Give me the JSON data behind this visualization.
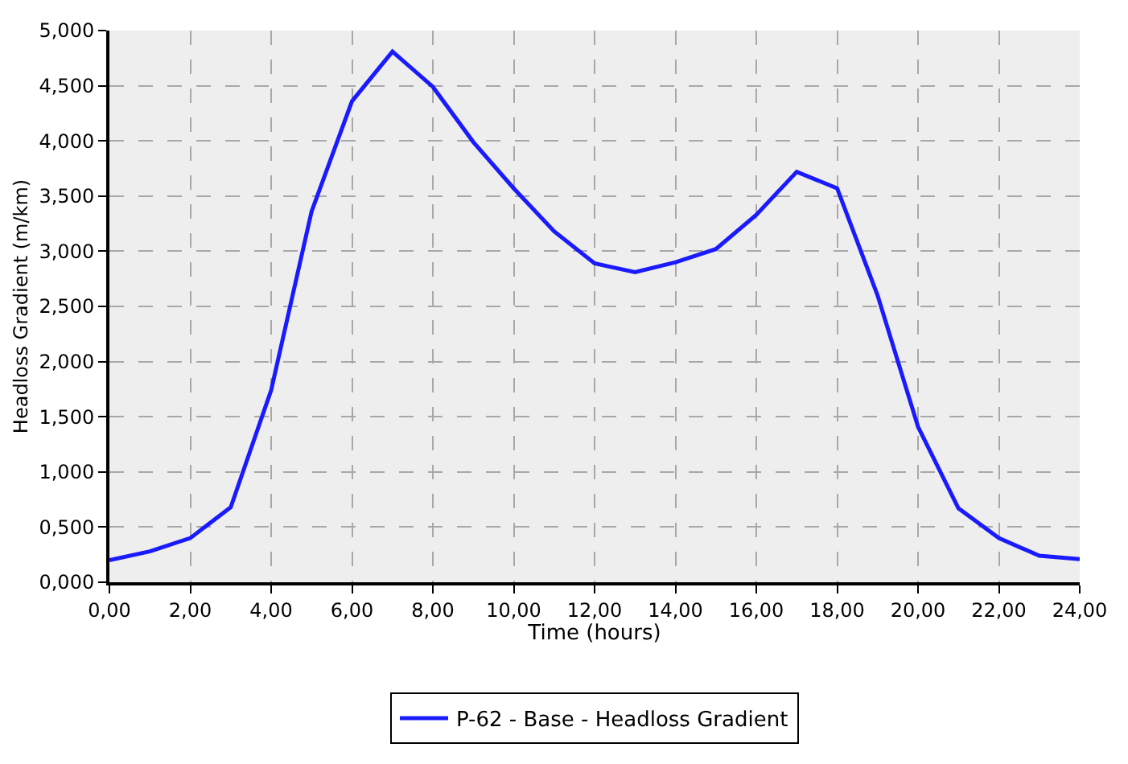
{
  "chart_data": {
    "type": "line",
    "xlabel": "Time (hours)",
    "ylabel": "Headloss Gradient (m/km)",
    "x": [
      0,
      1,
      2,
      3,
      4,
      5,
      6,
      7,
      8,
      9,
      10,
      11,
      12,
      13,
      14,
      15,
      16,
      17,
      18,
      19,
      20,
      21,
      22,
      23,
      24
    ],
    "series": [
      {
        "name": "P-62 - Base - Headloss Gradient",
        "color": "#1a1aff",
        "values": [
          0.2,
          0.28,
          0.4,
          0.68,
          1.74,
          3.36,
          4.36,
          4.81,
          4.49,
          3.99,
          3.57,
          3.18,
          2.89,
          2.81,
          2.9,
          3.02,
          3.33,
          3.72,
          3.57,
          2.6,
          1.41,
          0.67,
          0.4,
          0.24,
          0.21
        ]
      }
    ],
    "xlim": [
      0,
      24
    ],
    "xticks": [
      {
        "value": 0,
        "label": "0,00"
      },
      {
        "value": 2,
        "label": "2,00"
      },
      {
        "value": 4,
        "label": "4,00"
      },
      {
        "value": 6,
        "label": "6,00"
      },
      {
        "value": 8,
        "label": "8,00"
      },
      {
        "value": 10,
        "label": "10,00"
      },
      {
        "value": 12,
        "label": "12,00"
      },
      {
        "value": 14,
        "label": "14,00"
      },
      {
        "value": 16,
        "label": "16,00"
      },
      {
        "value": 18,
        "label": "18,00"
      },
      {
        "value": 20,
        "label": "20,00"
      },
      {
        "value": 22,
        "label": "22,00"
      },
      {
        "value": 24,
        "label": "24,00"
      }
    ],
    "ylim": [
      0,
      5
    ],
    "yticks": [
      {
        "value": 0,
        "label": "0,000"
      },
      {
        "value": 0.5,
        "label": "0,500"
      },
      {
        "value": 1,
        "label": "1,000"
      },
      {
        "value": 1.5,
        "label": "1,500"
      },
      {
        "value": 2,
        "label": "2,000"
      },
      {
        "value": 2.5,
        "label": "2,500"
      },
      {
        "value": 3,
        "label": "3,000"
      },
      {
        "value": 3.5,
        "label": "3,500"
      },
      {
        "value": 4,
        "label": "4,000"
      },
      {
        "value": 4.5,
        "label": "4,500"
      },
      {
        "value": 5,
        "label": "5,000"
      }
    ],
    "grid": true,
    "legend": "bottom",
    "marker": "none",
    "line_style": "solid"
  }
}
